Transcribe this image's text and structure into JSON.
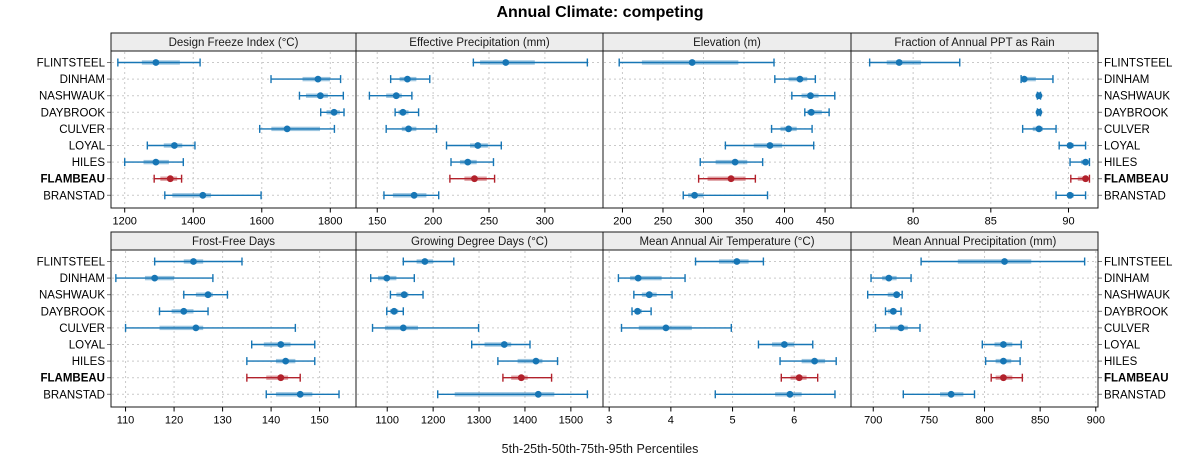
{
  "title": "Annual Climate: competing",
  "xlabel": "5th-25th-50th-75th-95th Percentiles",
  "stations": [
    "FLINTSTEEL",
    "DINHAM",
    "NASHWAUK",
    "DAYBROOK",
    "CULVER",
    "LOYAL",
    "HILES",
    "FLAMBEAU",
    "BRANSTAD"
  ],
  "highlight_station": "FLAMBEAU",
  "percentiles": [
    5,
    25,
    50,
    75,
    95
  ],
  "colors": {
    "series": "#1776b5",
    "highlight": "#b2212b",
    "grid": "#c9c9c9",
    "header_bg": "#ededed",
    "border": "#1a1a1a",
    "band_opacity": 0.42
  },
  "chart_data": [
    {
      "type": "dotplot-interval",
      "title": "Design Freeze Index (°C)",
      "row": 0,
      "col": 0,
      "xlim": [
        1160,
        1875
      ],
      "ticks": [
        1200,
        1400,
        1600,
        1800
      ],
      "grid": true,
      "legend": "none",
      "values": [
        [
          1180,
          1250,
          1291,
          1361,
          1420
        ],
        [
          1627,
          1719,
          1764,
          1799,
          1830
        ],
        [
          1710,
          1729,
          1771,
          1793,
          1838
        ],
        [
          1772,
          1789,
          1811,
          1828,
          1840
        ],
        [
          1594,
          1628,
          1674,
          1770,
          1812
        ],
        [
          1266,
          1314,
          1345,
          1368,
          1405
        ],
        [
          1200,
          1255,
          1291,
          1329,
          1371
        ],
        [
          1286,
          1304,
          1333,
          1353,
          1366
        ],
        [
          1317,
          1339,
          1428,
          1452,
          1598
        ]
      ]
    },
    {
      "type": "dotplot-interval",
      "title": "Effective Precipitation (mm)",
      "row": 0,
      "col": 1,
      "xlim": [
        131,
        352
      ],
      "ticks": [
        150,
        200,
        250,
        300
      ],
      "grid": true,
      "legend": "none",
      "values": [
        [
          236,
          242,
          265,
          291,
          338
        ],
        [
          162,
          170,
          177,
          185,
          197
        ],
        [
          143,
          158,
          167,
          172,
          181
        ],
        [
          166,
          169,
          173,
          178,
          187
        ],
        [
          158,
          172,
          178,
          185,
          203
        ],
        [
          212,
          233,
          240,
          249,
          261
        ],
        [
          216,
          224,
          231,
          239,
          254
        ],
        [
          215,
          228,
          237,
          248,
          255
        ],
        [
          156,
          164,
          183,
          194,
          205
        ]
      ]
    },
    {
      "type": "dotplot-interval",
      "title": "Elevation (m)",
      "row": 0,
      "col": 2,
      "xlim": [
        176,
        482
      ],
      "ticks": [
        200,
        250,
        300,
        350,
        400,
        450
      ],
      "grid": true,
      "legend": "none",
      "values": [
        [
          196,
          224,
          286,
          343,
          387
        ],
        [
          388,
          405,
          419,
          428,
          438
        ],
        [
          409,
          421,
          432,
          442,
          462
        ],
        [
          425,
          428,
          433,
          446,
          455
        ],
        [
          384,
          395,
          405,
          415,
          434
        ],
        [
          327,
          362,
          382,
          397,
          436
        ],
        [
          296,
          315,
          339,
          354,
          373
        ],
        [
          294,
          305,
          334,
          352,
          364
        ],
        [
          275,
          281,
          289,
          300,
          379
        ]
      ]
    },
    {
      "type": "dotplot-interval",
      "title": "Fraction of Annual PPT as Rain",
      "row": 0,
      "col": 3,
      "xlim": [
        76,
        91.9
      ],
      "ticks": [
        80,
        85,
        90
      ],
      "grid": true,
      "legend": "none",
      "values": [
        [
          77.2,
          78.3,
          79.1,
          80.5,
          83.0
        ],
        [
          86.95,
          87.05,
          87.15,
          87.9,
          89.0
        ],
        [
          88.0,
          88.05,
          88.1,
          88.15,
          88.2
        ],
        [
          88.0,
          88.05,
          88.1,
          88.15,
          88.2
        ],
        [
          87.05,
          87.7,
          88.1,
          88.35,
          89.2
        ],
        [
          89.4,
          89.9,
          90.1,
          90.35,
          91.1
        ],
        [
          90.1,
          90.8,
          91.1,
          91.2,
          91.35
        ],
        [
          90.15,
          90.6,
          91.1,
          91.2,
          91.35
        ],
        [
          89.2,
          89.9,
          90.1,
          90.35,
          91.1
        ]
      ]
    },
    {
      "type": "dotplot-interval",
      "title": "Frost-Free Days",
      "row": 1,
      "col": 0,
      "xlim": [
        107,
        157.5
      ],
      "ticks": [
        110,
        120,
        130,
        140,
        150
      ],
      "grid": true,
      "legend": "none",
      "values": [
        [
          116,
          122,
          124,
          126,
          134
        ],
        [
          108,
          114,
          116,
          120,
          128
        ],
        [
          122,
          124.5,
          127,
          128,
          131
        ],
        [
          117,
          119.5,
          122,
          124,
          127
        ],
        [
          110,
          117,
          124.5,
          126,
          145
        ],
        [
          136,
          138.5,
          142,
          144,
          149
        ],
        [
          135,
          141,
          143,
          145,
          149
        ],
        [
          135,
          139,
          142,
          143.5,
          146
        ],
        [
          139,
          141,
          146,
          148.5,
          154
        ]
      ]
    },
    {
      "type": "dotplot-interval",
      "title": "Growing Degree Days (°C)",
      "row": 1,
      "col": 1,
      "xlim": [
        1032,
        1570
      ],
      "ticks": [
        1100,
        1200,
        1300,
        1400,
        1500
      ],
      "grid": true,
      "legend": "none",
      "values": [
        [
          1135,
          1164,
          1182,
          1200,
          1245
        ],
        [
          1064,
          1080,
          1099,
          1120,
          1159
        ],
        [
          1107,
          1120,
          1137,
          1146,
          1178
        ],
        [
          1099,
          1106,
          1115,
          1124,
          1135
        ],
        [
          1068,
          1095,
          1135,
          1167,
          1299
        ],
        [
          1284,
          1312,
          1355,
          1370,
          1411
        ],
        [
          1341,
          1384,
          1424,
          1438,
          1471
        ],
        [
          1352,
          1370,
          1392,
          1406,
          1458
        ],
        [
          1210,
          1247,
          1429,
          1464,
          1536
        ]
      ]
    },
    {
      "type": "dotplot-interval",
      "title": "Mean Annual Air Temperature (°C)",
      "row": 1,
      "col": 2,
      "xlim": [
        2.9,
        6.92
      ],
      "ticks": [
        3,
        4,
        5,
        6
      ],
      "grid": true,
      "legend": "none",
      "values": [
        [
          4.4,
          4.78,
          5.07,
          5.26,
          5.5
        ],
        [
          3.15,
          3.34,
          3.47,
          3.85,
          4.23
        ],
        [
          3.4,
          3.53,
          3.65,
          3.77,
          4.02
        ],
        [
          3.37,
          3.41,
          3.46,
          3.53,
          3.68
        ],
        [
          3.2,
          3.48,
          3.92,
          4.34,
          4.98
        ],
        [
          5.42,
          5.64,
          5.84,
          6.0,
          6.3
        ],
        [
          5.77,
          6.12,
          6.33,
          6.5,
          6.68
        ],
        [
          5.79,
          5.94,
          6.08,
          6.2,
          6.38
        ],
        [
          4.72,
          5.69,
          5.93,
          6.12,
          6.66
        ]
      ]
    },
    {
      "type": "dotplot-interval",
      "title": "Mean Annual Precipitation (mm)",
      "row": 1,
      "col": 3,
      "xlim": [
        680,
        902
      ],
      "ticks": [
        700,
        750,
        800,
        850,
        900
      ],
      "grid": true,
      "legend": "none",
      "values": [
        [
          743,
          776,
          818,
          842,
          890
        ],
        [
          698,
          708,
          714,
          721,
          734
        ],
        [
          695,
          713,
          721,
          724,
          726
        ],
        [
          711,
          713,
          718,
          721,
          725
        ],
        [
          702,
          715,
          725,
          731,
          742
        ],
        [
          798,
          809,
          817,
          825,
          833
        ],
        [
          801,
          810,
          817,
          824,
          832
        ],
        [
          806,
          810,
          817,
          825,
          834
        ],
        [
          727,
          760,
          770,
          781,
          791
        ]
      ]
    }
  ]
}
